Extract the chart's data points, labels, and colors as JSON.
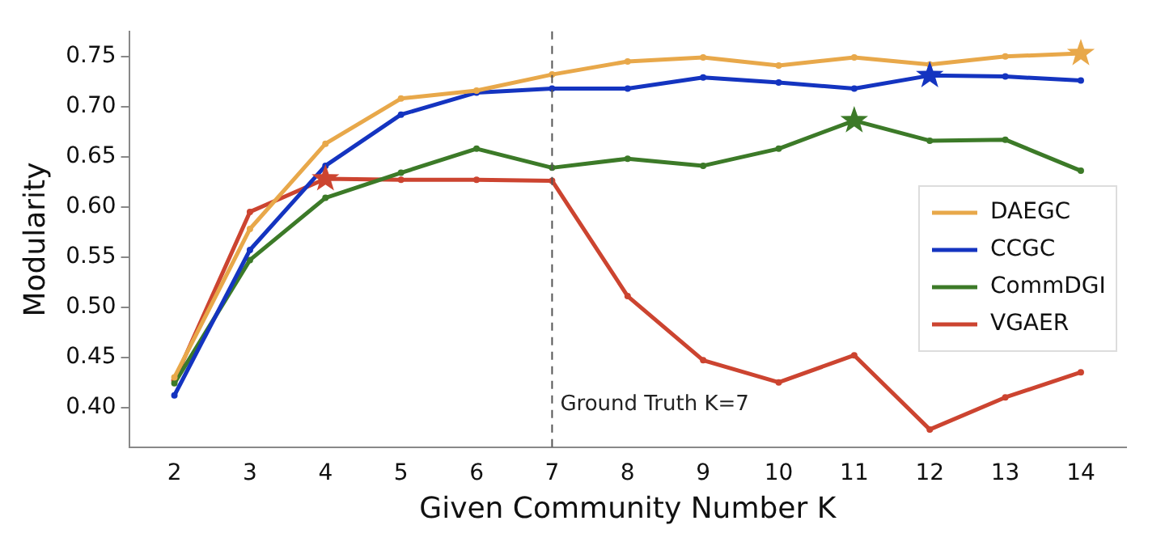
{
  "chart_data": {
    "type": "line",
    "xlabel": "Given Community Number K",
    "ylabel": "Modularity",
    "x": [
      2,
      3,
      4,
      5,
      6,
      7,
      8,
      9,
      10,
      11,
      12,
      13,
      14
    ],
    "xlim": [
      1.4,
      14.6
    ],
    "xticks": [
      2,
      3,
      4,
      5,
      6,
      7,
      8,
      9,
      10,
      11,
      12,
      13,
      14
    ],
    "ylim": [
      0.36,
      0.775
    ],
    "yticks": [
      {
        "value": 0.4,
        "label": "0.40"
      },
      {
        "value": 0.45,
        "label": "0.45"
      },
      {
        "value": 0.5,
        "label": "0.50"
      },
      {
        "value": 0.55,
        "label": "0.55"
      },
      {
        "value": 0.6,
        "label": "0.60"
      },
      {
        "value": 0.65,
        "label": "0.65"
      },
      {
        "value": 0.7,
        "label": "0.70"
      },
      {
        "value": 0.75,
        "label": "0.75"
      }
    ],
    "grid": false,
    "legend": "right",
    "marker": "circle",
    "line_style": "solid",
    "series": [
      {
        "name": "DAEGC",
        "color": "#e8a84a",
        "values": [
          0.43,
          0.578,
          0.663,
          0.708,
          0.716,
          0.732,
          0.745,
          0.749,
          0.741,
          0.749,
          0.742,
          0.75,
          0.753
        ]
      },
      {
        "name": "CCGC",
        "color": "#1434c0",
        "values": [
          0.412,
          0.557,
          0.641,
          0.692,
          0.714,
          0.718,
          0.718,
          0.729,
          0.724,
          0.718,
          0.731,
          0.73,
          0.726
        ]
      },
      {
        "name": "CommDGI",
        "color": "#3c7a28",
        "values": [
          0.424,
          0.547,
          0.609,
          0.634,
          0.658,
          0.639,
          0.648,
          0.641,
          0.658,
          0.686,
          0.666,
          0.667,
          0.636
        ]
      },
      {
        "name": "VGAER",
        "color": "#cc4430",
        "values": [
          0.427,
          0.595,
          0.628,
          0.627,
          0.627,
          0.626,
          0.511,
          0.447,
          0.425,
          0.452,
          0.378,
          0.41,
          0.435
        ]
      },
      {
        "type": "scatter",
        "marker": "star",
        "color": "#e8a84a",
        "x": [
          14
        ],
        "values": [
          0.753
        ]
      },
      {
        "type": "scatter",
        "marker": "star",
        "color": "#1434c0",
        "x": [
          12
        ],
        "values": [
          0.731
        ]
      },
      {
        "type": "scatter",
        "marker": "star",
        "color": "#3c7a28",
        "x": [
          11
        ],
        "values": [
          0.686
        ]
      },
      {
        "type": "scatter",
        "marker": "star",
        "color": "#cc4430",
        "x": [
          4
        ],
        "values": [
          0.628
        ]
      }
    ],
    "ref_lines": [
      {
        "axis": "x",
        "value": 7,
        "label": "Ground Truth K=7",
        "color": "#555555",
        "line_style": "dashed"
      }
    ]
  }
}
